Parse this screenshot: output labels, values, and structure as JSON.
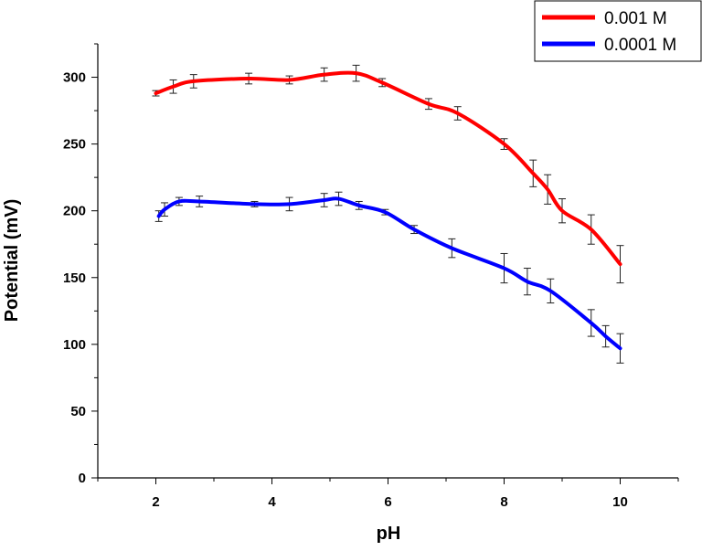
{
  "chart_data": {
    "type": "line",
    "xlabel": "pH",
    "ylabel": "Potential (mV)",
    "xlim": [
      1,
      11
    ],
    "ylim": [
      0,
      325
    ],
    "xticks": [
      2,
      4,
      6,
      8,
      10
    ],
    "yticks": [
      0,
      50,
      100,
      150,
      200,
      250,
      300
    ],
    "grid": false,
    "legend_position": "top-right",
    "series": [
      {
        "name": "0.001 M",
        "color": "#ff0000",
        "x": [
          2.0,
          2.3,
          2.65,
          3.6,
          4.3,
          4.9,
          5.45,
          5.9,
          6.7,
          7.2,
          8.0,
          8.5,
          8.75,
          9.0,
          9.5,
          10.0
        ],
        "y": [
          288,
          293,
          297,
          299,
          298,
          302,
          303,
          296,
          280,
          273,
          250,
          228,
          216,
          200,
          186,
          160
        ],
        "error": [
          2,
          5,
          5,
          4,
          3,
          5,
          6,
          3,
          4,
          5,
          4,
          10,
          11,
          9,
          11,
          14
        ]
      },
      {
        "name": "0.0001 M",
        "color": "#0000ff",
        "x": [
          2.05,
          2.15,
          2.4,
          2.75,
          3.7,
          4.3,
          4.9,
          5.15,
          5.5,
          5.95,
          6.45,
          7.1,
          8.0,
          8.4,
          8.8,
          9.5,
          9.75,
          10.0
        ],
        "y": [
          196,
          201,
          207,
          207,
          205,
          205,
          208,
          209,
          204,
          199,
          186,
          172,
          157,
          147,
          140,
          116,
          106,
          97
        ],
        "error": [
          4,
          5,
          3,
          4,
          2,
          5,
          5,
          5,
          3,
          2,
          3,
          7,
          11,
          10,
          9,
          10,
          8,
          11
        ]
      }
    ]
  }
}
